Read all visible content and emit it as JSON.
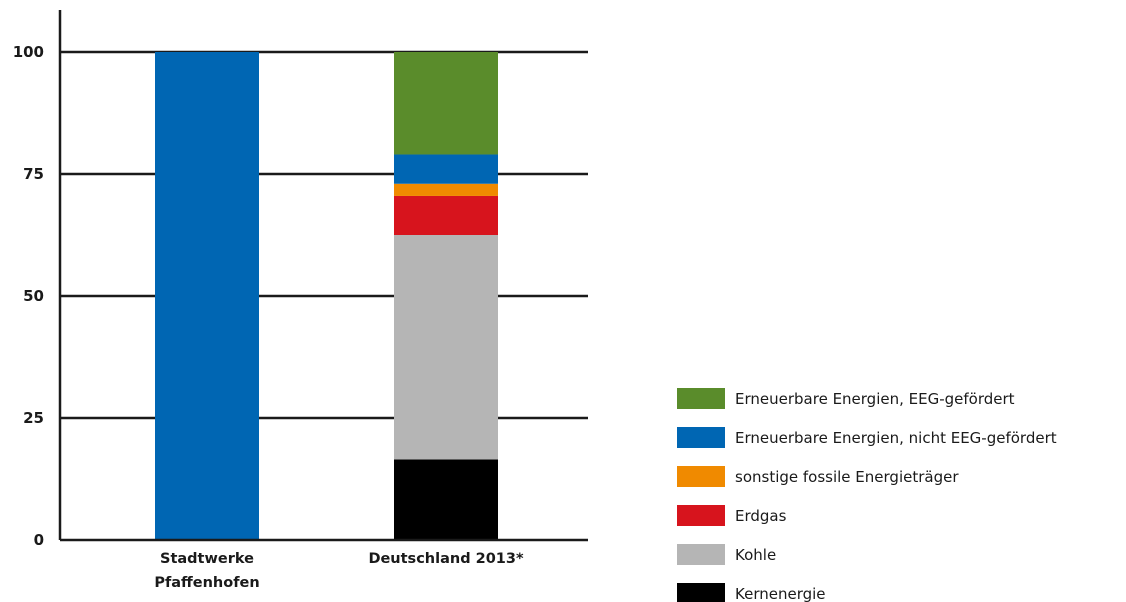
{
  "chart_data": {
    "type": "bar",
    "stacked": true,
    "categories": [
      [
        "Stadtwerke",
        "Pfaffenhofen"
      ],
      [
        "Deutschland 2013*"
      ]
    ],
    "series": [
      {
        "name": "Kernenergie",
        "color": "#000000",
        "values": [
          0,
          16.5
        ]
      },
      {
        "name": "Kohle",
        "color": "#b5b5b5",
        "values": [
          0,
          46
        ]
      },
      {
        "name": "Erdgas",
        "color": "#d7141d",
        "values": [
          0,
          8
        ]
      },
      {
        "name": "sonstige fossile Energieträger",
        "color": "#f08a00",
        "values": [
          0,
          2.5
        ]
      },
      {
        "name": "Erneuerbare Energien, nicht EEG-gefördert",
        "color": "#0066b3",
        "values": [
          100,
          6
        ]
      },
      {
        "name": "Erneuerbare Energien, EEG-gefördert",
        "color": "#5a8c2b",
        "values": [
          0,
          21
        ]
      }
    ],
    "yticks": [
      "0",
      "25",
      "50",
      "75",
      "100"
    ],
    "ylim": [
      0,
      100
    ],
    "legend_position": "bottom-right",
    "grid": "horizontal"
  }
}
